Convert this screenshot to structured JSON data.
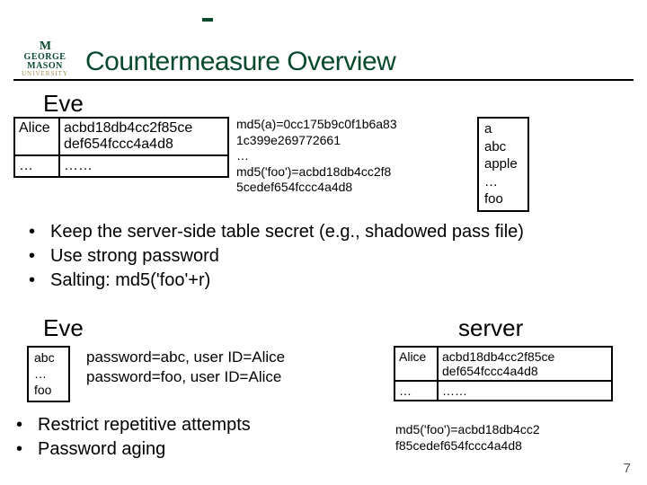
{
  "logo": {
    "m": "M",
    "name": "GEORGE MASON",
    "univ": "UNIVERSITY"
  },
  "title": "Countermeasure Overview",
  "eve_label": "Eve",
  "server_label": "server",
  "table_a": {
    "r1c1": "Alice",
    "r1c2": "acbd18db4cc2f85ce def654fccc4a4d8",
    "r2c1": "…",
    "r2c2": "……"
  },
  "mid1": {
    "l1": "md5(a)=0cc175b9c0f1b6a83",
    "l2": "1c399e269772661",
    "l3": "…",
    "l4": "md5('foo')=acbd18db4cc2f8",
    "l5": "5cedef654fccc4a4d8"
  },
  "dict": {
    "l1": "a",
    "l2": "abc",
    "l3": "apple",
    "l4": "…",
    "l5": "foo"
  },
  "bullets1": [
    "Keep the server-side table secret (e.g., shadowed pass file)",
    "Use strong password",
    "Salting: md5('foo'+r)"
  ],
  "dict2": {
    "l1": "abc",
    "l2": "…",
    "l3": "foo"
  },
  "mid2": {
    "l1": "password=abc, user ID=Alice",
    "l2": "password=foo, user ID=Alice"
  },
  "table_b": {
    "r1c1": "Alice",
    "r1c2": "acbd18db4cc2f85ce def654fccc4a4d8",
    "r2c1": "…",
    "r2c2": "……"
  },
  "md5_b": {
    "l1": "md5('foo')=acbd18db4cc2",
    "l2": "f85cedef654fccc4a4d8"
  },
  "bullets2": [
    "Restrict repetitive attempts",
    "Password aging"
  ],
  "slidenum": "7"
}
